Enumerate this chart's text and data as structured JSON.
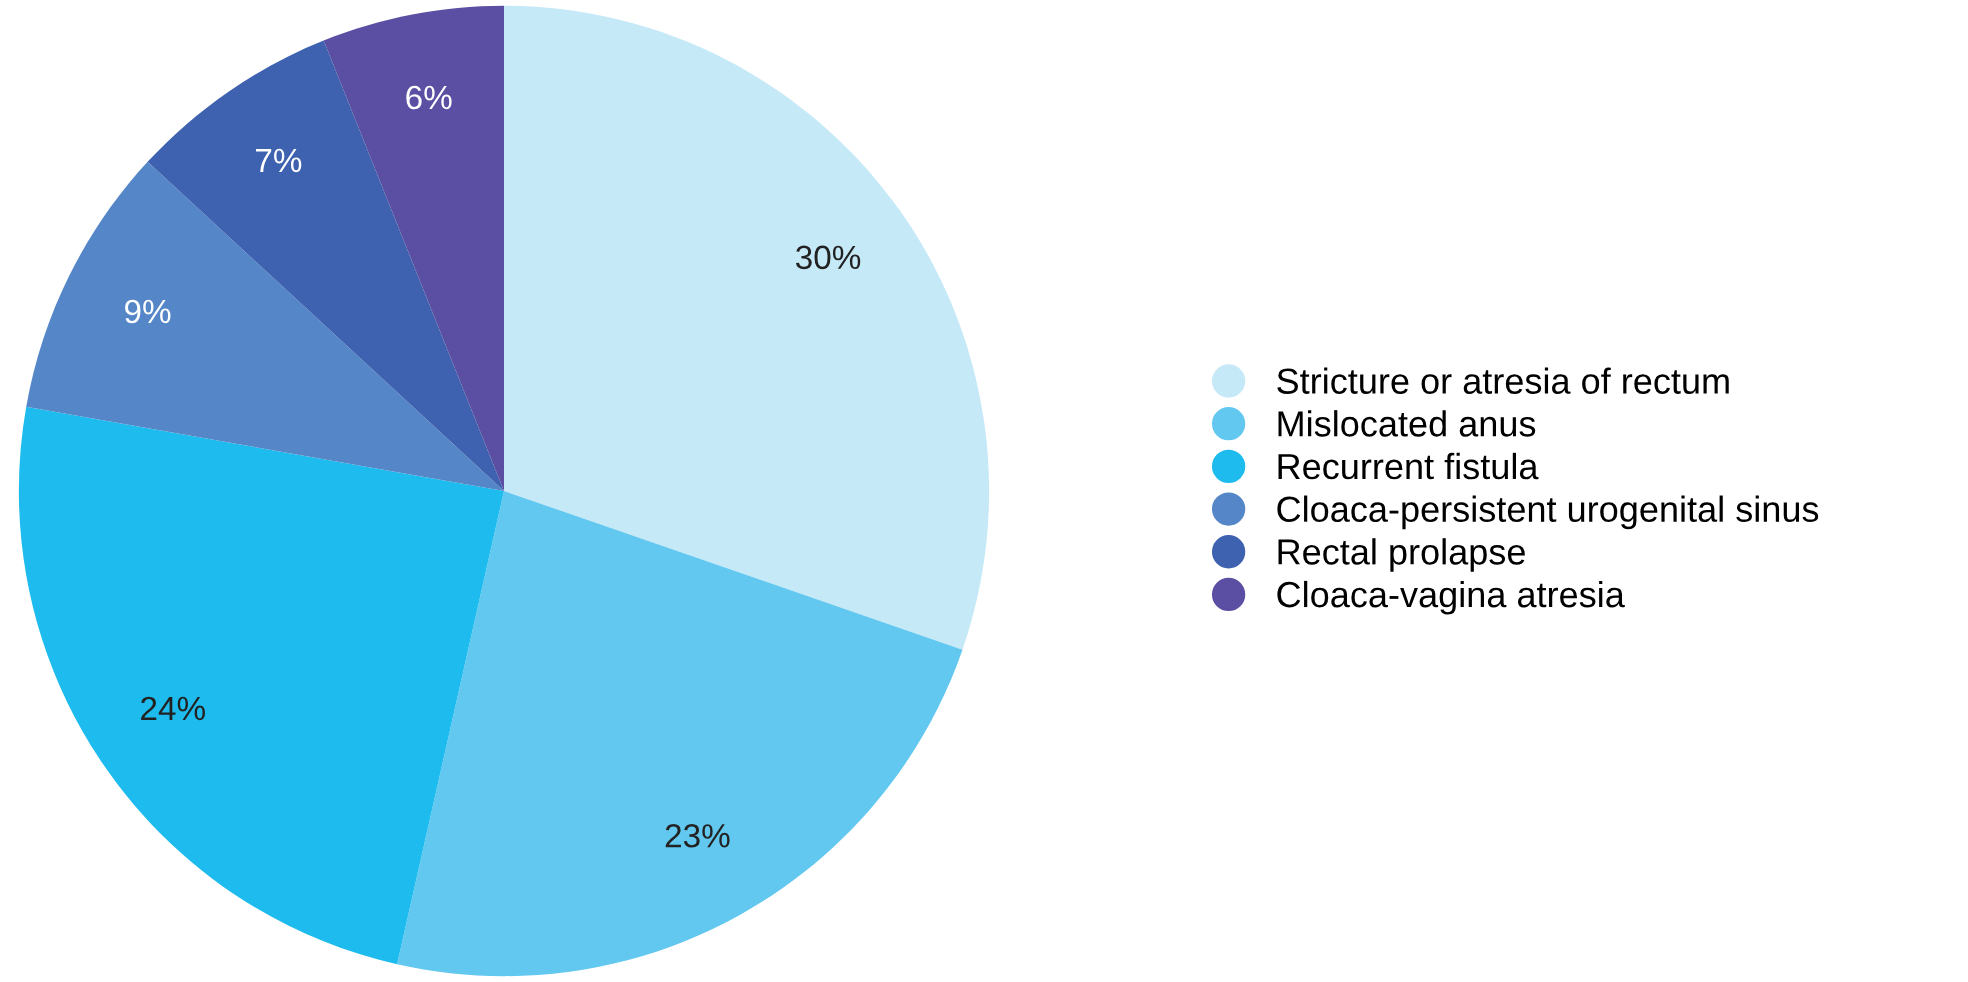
{
  "chart_data": {
    "type": "pie",
    "categories": [
      "Stricture or atresia of rectum",
      "Mislocated anus",
      "Recurrent fistula",
      "Cloaca-persistent urogenital sinus",
      "Rectal prolapse",
      "Cloaca-vagina atresia"
    ],
    "values": [
      30,
      23,
      24,
      9,
      7,
      6
    ],
    "colors": [
      "#c6e9f8",
      "#62c8f0",
      "#1ebcee",
      "#5486c8",
      "#3e62b0",
      "#5b4fa3"
    ],
    "value_labels": [
      "30%",
      "23%",
      "24%",
      "9%",
      "7%",
      "6%"
    ],
    "legend": "right"
  }
}
